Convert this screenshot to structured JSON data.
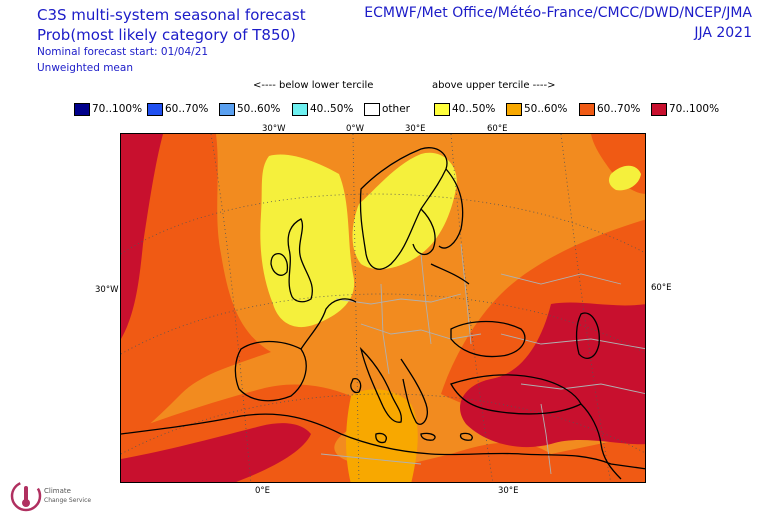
{
  "header": {
    "left_title": "C3S multi-system seasonal forecast",
    "left_subtitle": "Prob(most likely category of T850)",
    "start_line": "Nominal forecast start: 01/04/21",
    "mean_line": "Unweighted mean",
    "centres": "ECMWF/Met Office/Météo-France/CMCC/DWD/NCEP/JMA",
    "season": "JJA 2021"
  },
  "legend": {
    "below_caption": "<---- below lower tercile",
    "above_caption": "above upper tercile ---->",
    "items": [
      {
        "label": "70..100%",
        "color": "#00008b"
      },
      {
        "label": "60..70%",
        "color": "#2050f0"
      },
      {
        "label": "50..60%",
        "color": "#5aa0f0"
      },
      {
        "label": "40..50%",
        "color": "#6ef0f0"
      },
      {
        "label": "other",
        "color": "#ffffff"
      },
      {
        "label": "40..50%",
        "color": "#ffff3c"
      },
      {
        "label": "50..60%",
        "color": "#f8a800"
      },
      {
        "label": "60..70%",
        "color": "#f05a14"
      },
      {
        "label": "70..100%",
        "color": "#c8102e"
      }
    ]
  },
  "map": {
    "top_lon_labels": [
      "30°W",
      "0°W",
      "30°E",
      "60°E"
    ],
    "left_lat_label": "30°W",
    "right_lat_label": "60°E",
    "bottom_lon_labels": [
      "0°E",
      "30°E"
    ],
    "colors": {
      "yellow": "#f5f03c",
      "light_orange": "#f8a800",
      "orange": "#f28b1f",
      "dark_orange": "#f05a14",
      "red": "#c8102e",
      "coast": "#000000",
      "borders": "#b0b0b0",
      "graticule": "#555555"
    }
  },
  "logo": {
    "name": "Climate Change Service",
    "line1": "Climate",
    "line2": "Change Service",
    "icon": "thermometer-icon"
  }
}
